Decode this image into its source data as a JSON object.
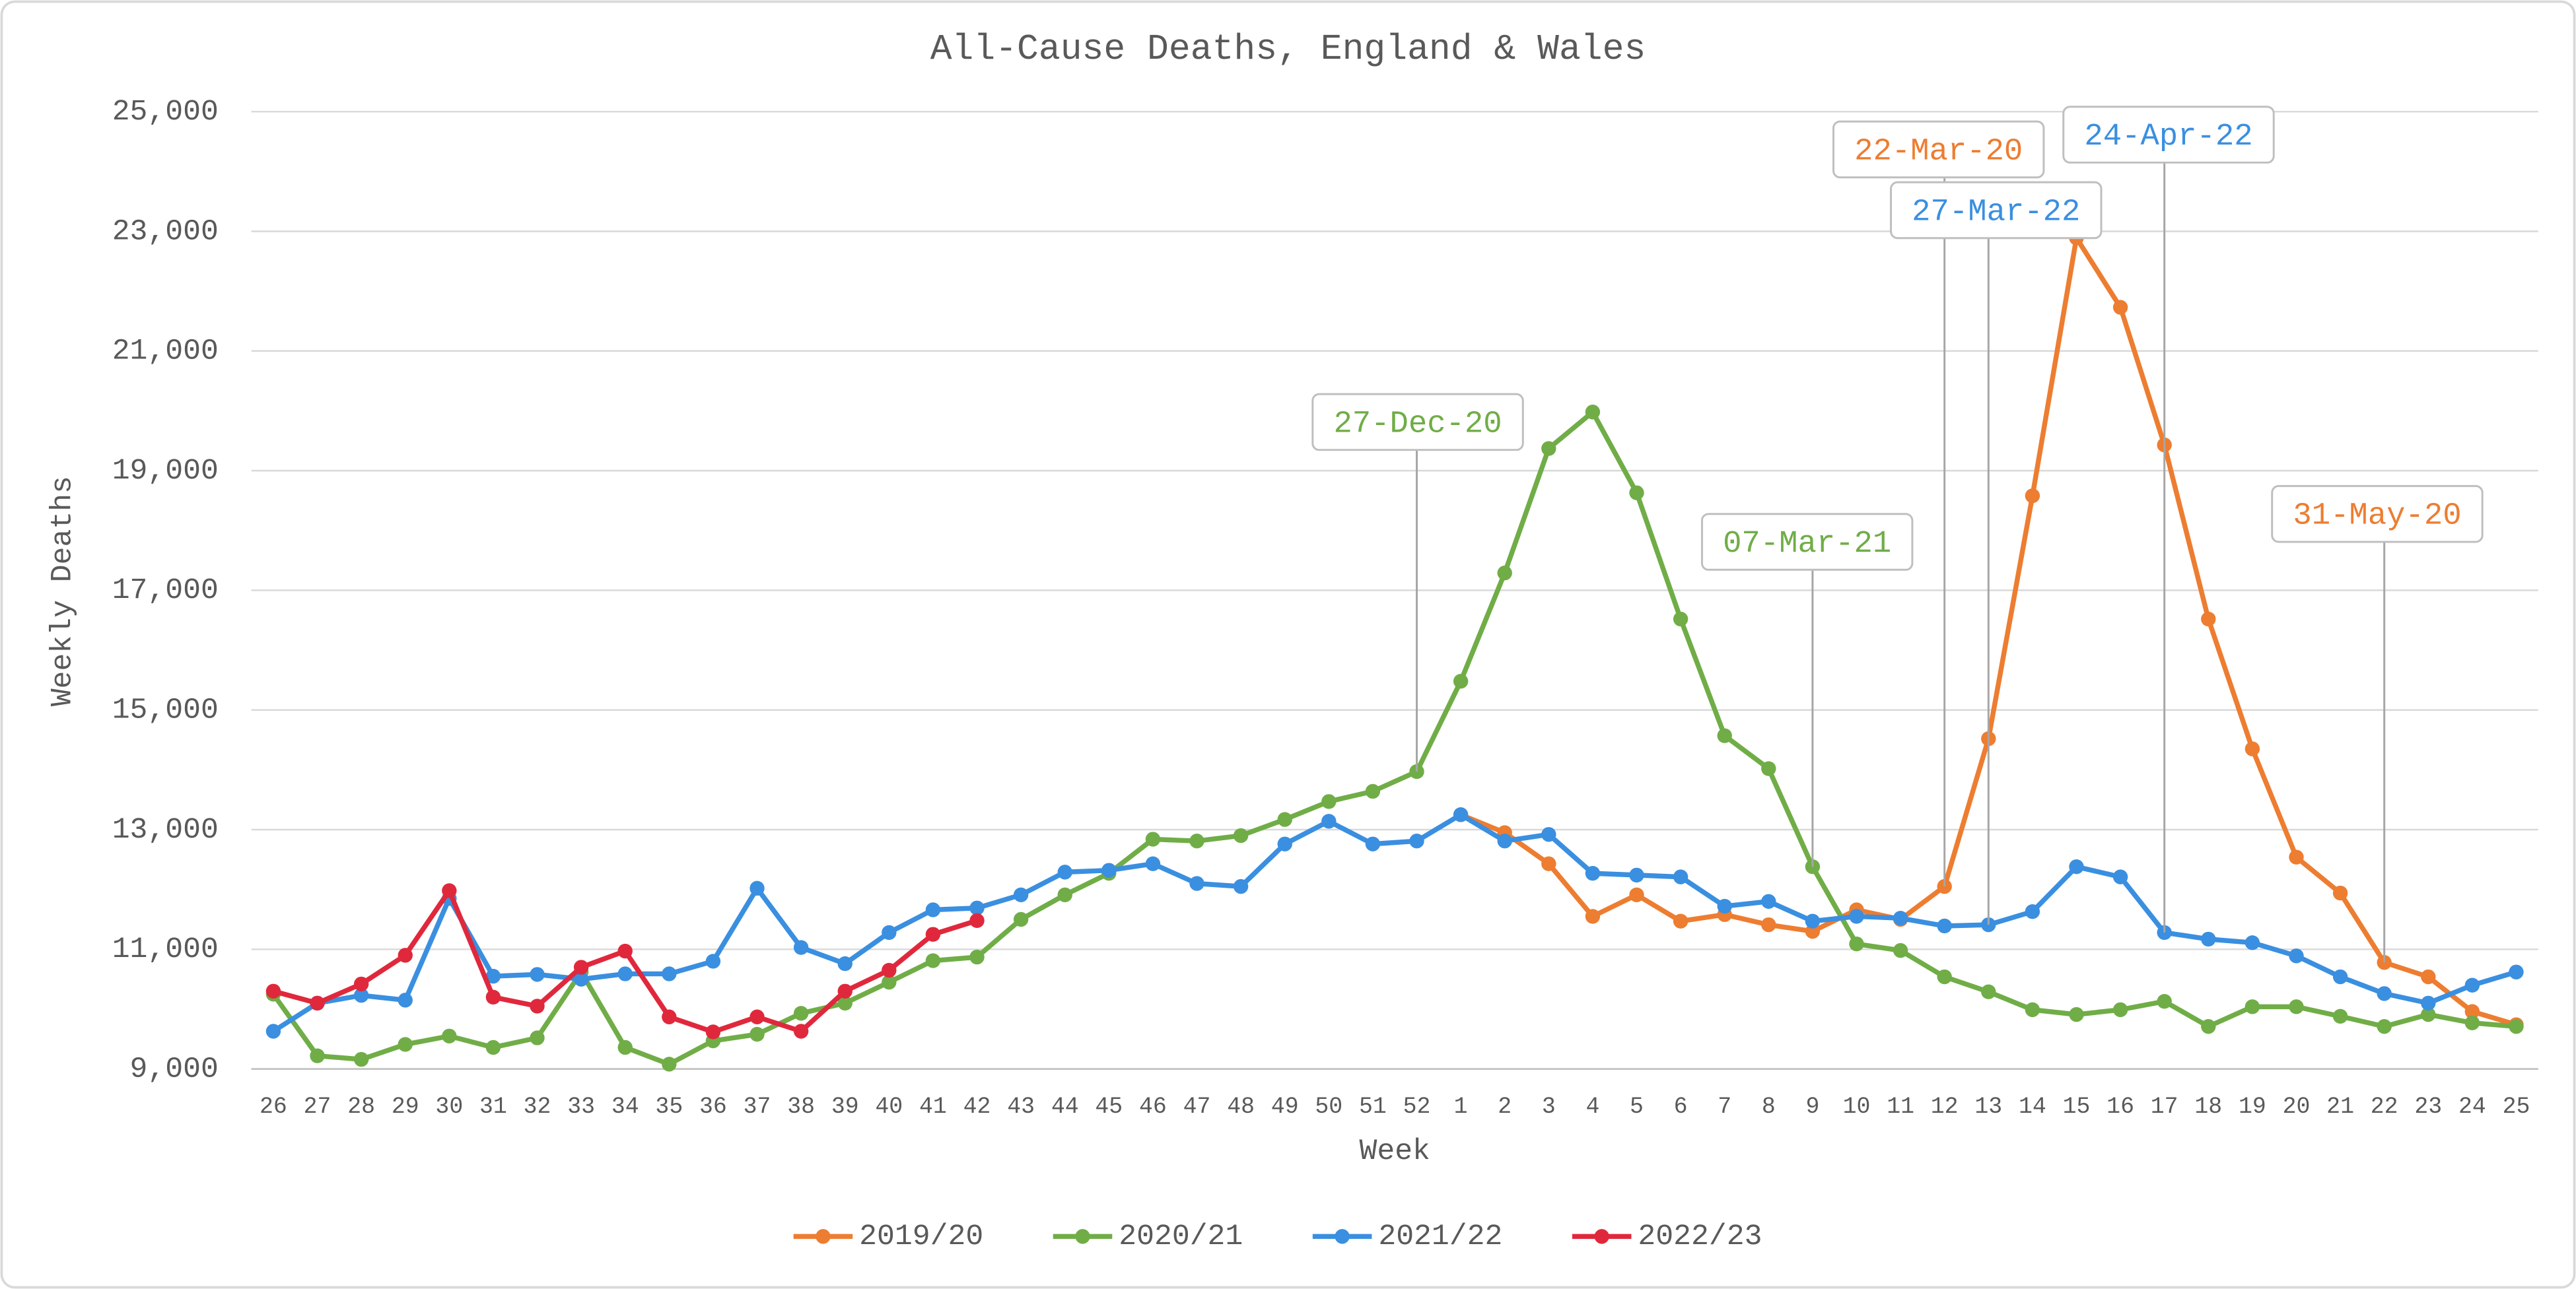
{
  "chart_data": {
    "type": "line",
    "title": "All-Cause Deaths, England & Wales",
    "x_label": "Week",
    "y_label": "Weekly Deaths",
    "categories": [
      "26",
      "27",
      "28",
      "29",
      "30",
      "31",
      "32",
      "33",
      "34",
      "35",
      "36",
      "37",
      "38",
      "39",
      "40",
      "41",
      "42",
      "43",
      "44",
      "45",
      "46",
      "47",
      "48",
      "49",
      "50",
      "51",
      "52",
      "1",
      "2",
      "3",
      "4",
      "5",
      "6",
      "7",
      "8",
      "9",
      "10",
      "11",
      "12",
      "13",
      "14",
      "15",
      "16",
      "17",
      "18",
      "19",
      "20",
      "21",
      "22",
      "23",
      "24",
      "25"
    ],
    "ylim": [
      9000,
      25000
    ],
    "yticks": [
      {
        "value": 9000,
        "label": "9,000"
      },
      {
        "value": 11000,
        "label": "11,000"
      },
      {
        "value": 13000,
        "label": "13,000"
      },
      {
        "value": 15000,
        "label": "15,000"
      },
      {
        "value": 17000,
        "label": "17,000"
      },
      {
        "value": 19000,
        "label": "19,000"
      },
      {
        "value": 21000,
        "label": "21,000"
      },
      {
        "value": 23000,
        "label": "23,000"
      },
      {
        "value": 25000,
        "label": "25,000"
      }
    ],
    "grid": true,
    "legend": "bottom",
    "series": [
      {
        "name": "2019/20",
        "color": "#ED7D31",
        "values": [
          null,
          null,
          null,
          null,
          null,
          null,
          null,
          null,
          null,
          null,
          null,
          null,
          null,
          null,
          null,
          null,
          null,
          null,
          null,
          null,
          null,
          null,
          null,
          null,
          null,
          null,
          null,
          13250,
          12950,
          12430,
          11550,
          11910,
          11470,
          11580,
          11410,
          11300,
          11660,
          11500,
          12050,
          14520,
          18580,
          22890,
          21730,
          19430,
          16520,
          14350,
          12540,
          11940,
          10780,
          10540,
          9960,
          9740
        ]
      },
      {
        "name": "2020/21",
        "color": "#70AD47",
        "values": [
          10250,
          9220,
          9160,
          9410,
          9550,
          9360,
          9520,
          10620,
          9360,
          9080,
          9470,
          9580,
          9930,
          10100,
          10450,
          10810,
          10870,
          11500,
          11910,
          12270,
          12840,
          12810,
          12900,
          13170,
          13470,
          13640,
          13970,
          15480,
          17290,
          19370,
          19980,
          18630,
          16520,
          14570,
          14020,
          12380,
          11090,
          10980,
          10540,
          10290,
          9990,
          9910,
          9990,
          10130,
          9710,
          10040,
          10040,
          9880,
          9710,
          9910,
          9770,
          9710
        ]
      },
      {
        "name": "2021/22",
        "color": "#3A8FE0",
        "values": [
          9630,
          10100,
          10230,
          10150,
          11850,
          10550,
          10580,
          10500,
          10590,
          10590,
          10800,
          12020,
          11030,
          10760,
          11280,
          11660,
          11690,
          11910,
          12290,
          12320,
          12430,
          12100,
          12050,
          12760,
          13140,
          12760,
          12810,
          13250,
          12810,
          12920,
          12270,
          12240,
          12210,
          11720,
          11800,
          11470,
          11550,
          11520,
          11390,
          11410,
          11630,
          12380,
          12210,
          11280,
          11170,
          11110,
          10890,
          10540,
          10260,
          10100,
          10400,
          10620
        ]
      },
      {
        "name": "2022/23",
        "color": "#E0283C",
        "values": [
          10300,
          10100,
          10420,
          10900,
          11980,
          10200,
          10050,
          10700,
          10970,
          9870,
          9620,
          9870,
          9630,
          10300,
          10650,
          11250,
          11480,
          null,
          null,
          null,
          null,
          null,
          null,
          null,
          null,
          null,
          null,
          null,
          null,
          null,
          null,
          null,
          null,
          null,
          null,
          null,
          null,
          null,
          null,
          null,
          null,
          null,
          null,
          null,
          null,
          null,
          null,
          null,
          null,
          null,
          null,
          null
        ]
      }
    ],
    "annotations": [
      "27-Dec-20",
      "07-Mar-21",
      "22-Mar-20",
      "27-Mar-22",
      "24-Apr-22",
      "31-May-20"
    ]
  }
}
